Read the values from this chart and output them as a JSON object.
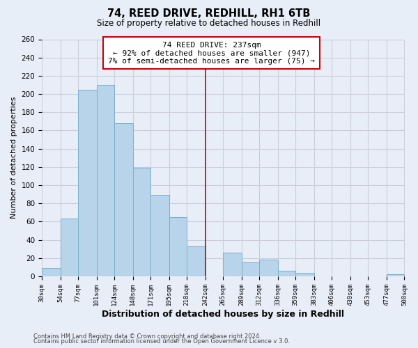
{
  "title": "74, REED DRIVE, REDHILL, RH1 6TB",
  "subtitle": "Size of property relative to detached houses in Redhill",
  "xlabel": "Distribution of detached houses by size in Redhill",
  "ylabel": "Number of detached properties",
  "bin_labels": [
    "30sqm",
    "54sqm",
    "77sqm",
    "101sqm",
    "124sqm",
    "148sqm",
    "171sqm",
    "195sqm",
    "218sqm",
    "242sqm",
    "265sqm",
    "289sqm",
    "312sqm",
    "336sqm",
    "359sqm",
    "383sqm",
    "406sqm",
    "430sqm",
    "453sqm",
    "477sqm",
    "500sqm"
  ],
  "bar_heights": [
    9,
    63,
    205,
    210,
    168,
    119,
    89,
    65,
    33,
    0,
    26,
    15,
    18,
    6,
    4,
    0,
    0,
    0,
    0,
    2,
    0
  ],
  "bar_color": "#b8d4ea",
  "bar_edge_color": "#7aafc8",
  "marker_line_color": "#cc0000",
  "annotation_text_line1": "74 REED DRIVE: 237sqm",
  "annotation_text_line2": "← 92% of detached houses are smaller (947)",
  "annotation_text_line3": "7% of semi-detached houses are larger (75) →",
  "annotation_box_color": "#ffffff",
  "annotation_box_edge": "#cc0000",
  "ylim": [
    0,
    260
  ],
  "footer_line1": "Contains HM Land Registry data © Crown copyright and database right 2024.",
  "footer_line2": "Contains public sector information licensed under the Open Government Licence v 3.0.",
  "bg_color": "#e8eef8",
  "grid_color": "#ccccdd",
  "bin_edges": [
    30,
    54,
    77,
    101,
    124,
    148,
    171,
    195,
    218,
    242,
    265,
    289,
    312,
    336,
    359,
    383,
    406,
    430,
    453,
    477,
    500
  ]
}
